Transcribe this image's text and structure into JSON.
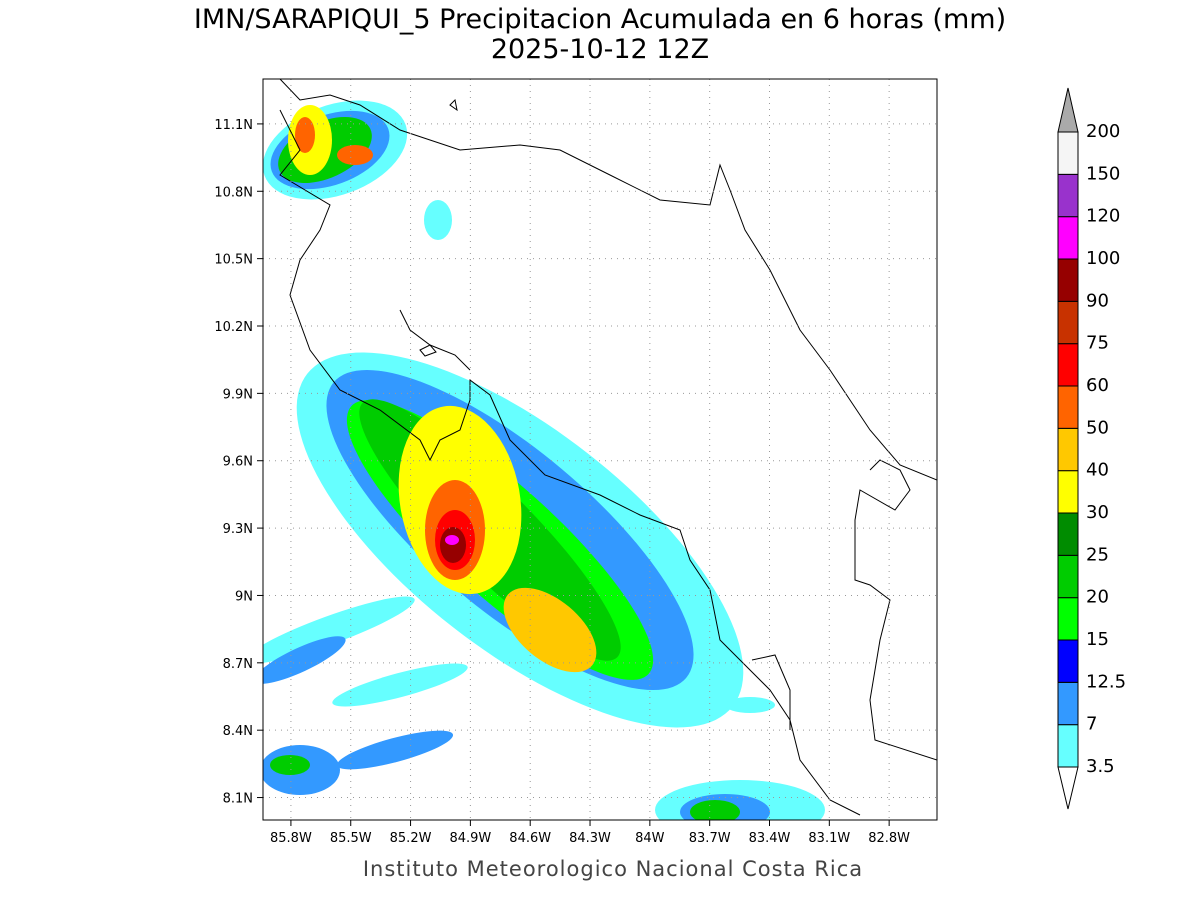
{
  "title": "IMN/SARAPIQUI_5 Precipitacion Acumulada en 6 horas (mm)",
  "subtitle": "2025-10-12 12Z",
  "footer": "Instituto Meteorologico Nacional Costa Rica",
  "map": {
    "lon_range": [
      -85.94,
      -82.56
    ],
    "lat_range": [
      8.0,
      11.3
    ],
    "x_ticks": [
      {
        "value": -85.8,
        "label": "85.8W"
      },
      {
        "value": -85.5,
        "label": "85.5W"
      },
      {
        "value": -85.2,
        "label": "85.2W"
      },
      {
        "value": -84.9,
        "label": "84.9W"
      },
      {
        "value": -84.6,
        "label": "84.6W"
      },
      {
        "value": -84.3,
        "label": "84.3W"
      },
      {
        "value": -84.0,
        "label": "84W"
      },
      {
        "value": -83.7,
        "label": "83.7W"
      },
      {
        "value": -83.4,
        "label": "83.4W"
      },
      {
        "value": -83.1,
        "label": "83.1W"
      },
      {
        "value": -82.8,
        "label": "82.8W"
      }
    ],
    "y_ticks": [
      {
        "value": 11.1,
        "label": "11.1N"
      },
      {
        "value": 10.8,
        "label": "10.8N"
      },
      {
        "value": 10.5,
        "label": "10.5N"
      },
      {
        "value": 10.2,
        "label": "10.2N"
      },
      {
        "value": 9.9,
        "label": "9.9N"
      },
      {
        "value": 9.6,
        "label": "9.6N"
      },
      {
        "value": 9.3,
        "label": "9.3N"
      },
      {
        "value": 9.0,
        "label": "9N"
      },
      {
        "value": 8.7,
        "label": "8.7N"
      },
      {
        "value": 8.4,
        "label": "8.4N"
      },
      {
        "value": 8.1,
        "label": "8.1N"
      }
    ],
    "grid": true
  },
  "colorbar": {
    "levels": [
      3.5,
      7,
      12.5,
      15,
      20,
      25,
      30,
      40,
      50,
      60,
      75,
      90,
      100,
      120,
      150,
      200
    ],
    "colors": [
      "#66ffff",
      "#3399ff",
      "#0000ff",
      "#00ff00",
      "#00cc00",
      "#008c00",
      "#ffff00",
      "#ffc800",
      "#ff6400",
      "#ff0000",
      "#c83200",
      "#960000",
      "#ff00ff",
      "#9932cc",
      "#f5f5f5"
    ],
    "under_color": "#ffffff",
    "over_color": "#aaaaaa"
  }
}
